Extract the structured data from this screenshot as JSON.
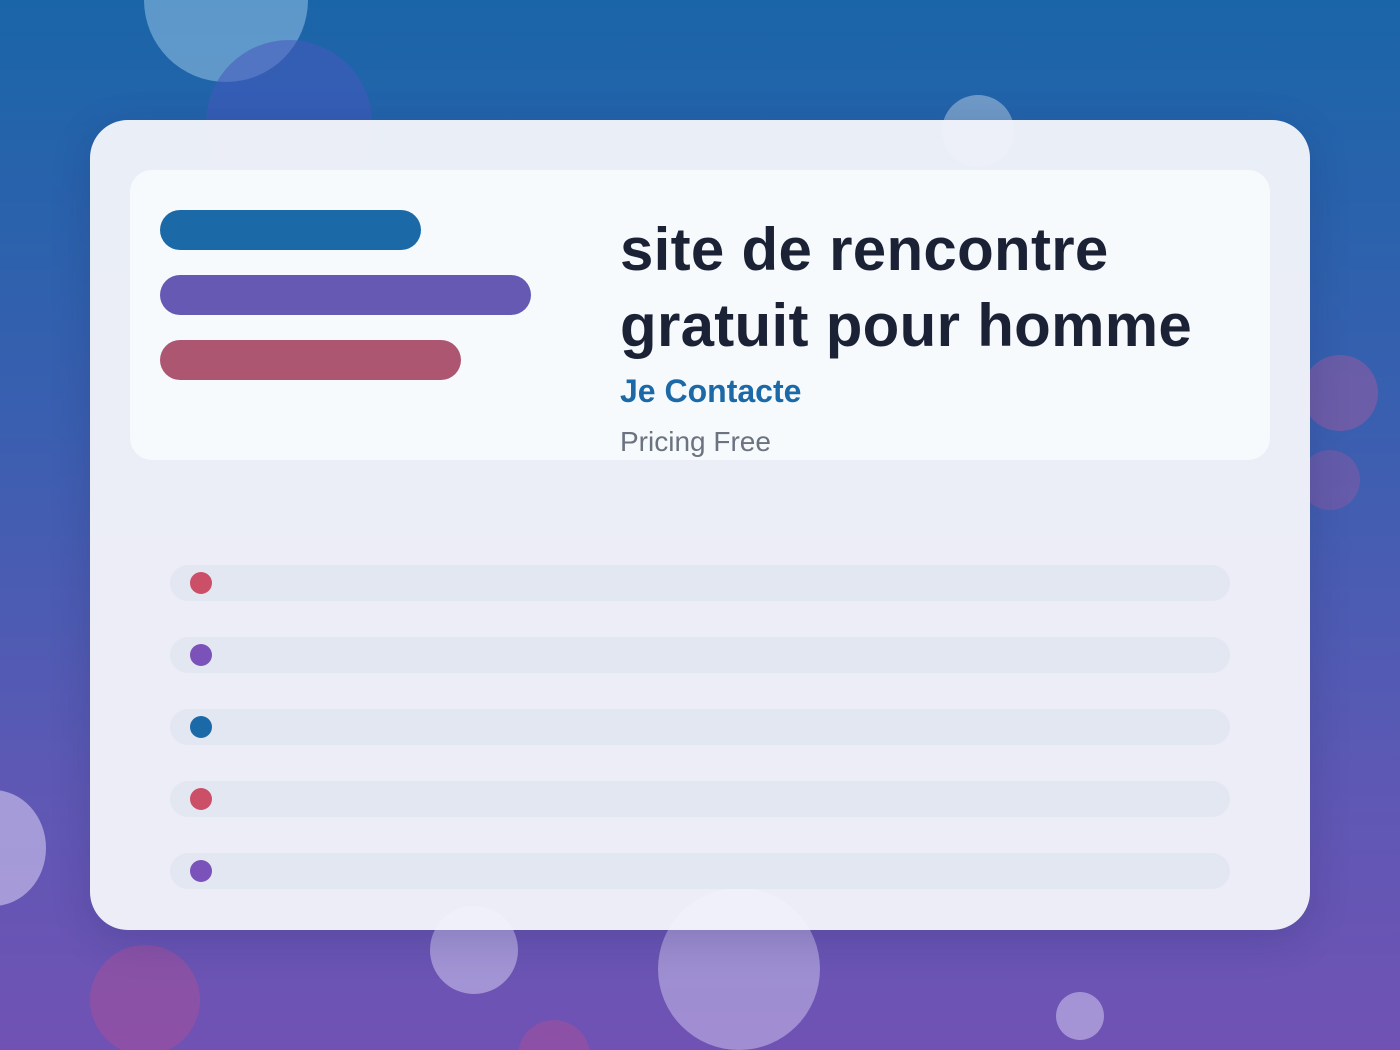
{
  "hero": {
    "title": "site de rencontre gratuit pour homme",
    "cta_label": "Je Contacte",
    "pricing_text": "Pricing Free"
  },
  "theme": {
    "background_top": "#1a65a8",
    "background_bottom": "#7052b4",
    "card": "#f2f4fa",
    "title_color": "#1c2236",
    "cta_color": "#1c69a8",
    "muted_text": "#6b7280",
    "row_track": "#e3e7f1"
  },
  "accent_bars": [
    {
      "color": "#1c69a8"
    },
    {
      "color": "#6559b3"
    },
    {
      "color": "#ad5672"
    }
  ],
  "list_rows": [
    {
      "dot_color": "#cc4f68"
    },
    {
      "dot_color": "#7b52b9"
    },
    {
      "dot_color": "#1c69a8"
    },
    {
      "dot_color": "#cc4f68"
    },
    {
      "dot_color": "#7b52b9"
    }
  ]
}
